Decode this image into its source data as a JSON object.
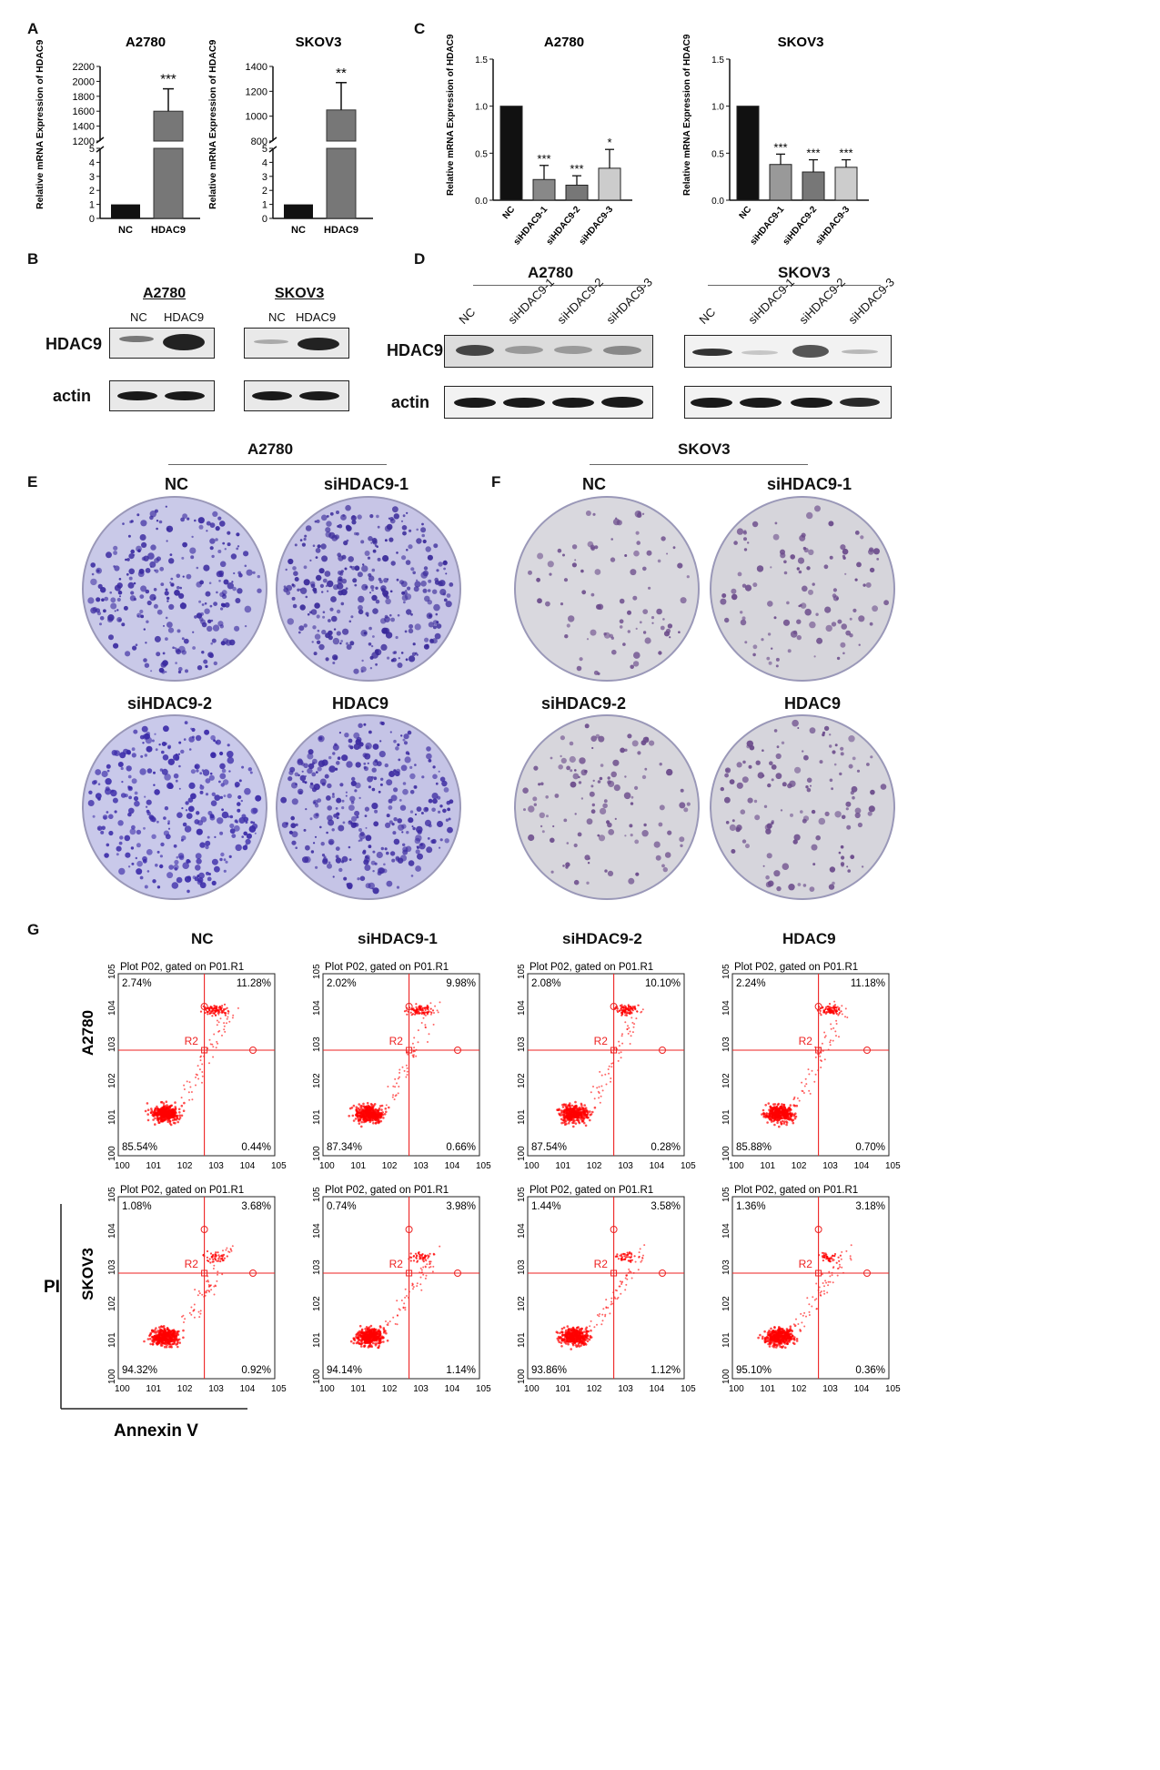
{
  "panels": {
    "A": "A",
    "B": "B",
    "C": "C",
    "D": "D",
    "E": "E",
    "F": "F",
    "G": "G"
  },
  "chartA1": {
    "type": "bar",
    "title": "A2780",
    "ylabel": "Relative mRNA Expression of HDAC9",
    "categories": [
      "NC",
      "HDAC9"
    ],
    "values": [
      1,
      1600
    ],
    "errors": [
      0,
      300
    ],
    "sig": [
      "",
      "***"
    ],
    "upper_ticks": [
      "2200",
      "2000",
      "1800",
      "1600",
      "1400",
      "1200"
    ],
    "lower_ticks": [
      "5",
      "4",
      "3",
      "2",
      "1",
      "0"
    ]
  },
  "chartA2": {
    "type": "bar",
    "title": "SKOV3",
    "ylabel": "Relative mRNA Expression of HDAC9",
    "categories": [
      "NC",
      "HDAC9"
    ],
    "values": [
      1,
      1050
    ],
    "errors": [
      0,
      220
    ],
    "sig": [
      "",
      "**"
    ],
    "upper_ticks": [
      "1400",
      "1200",
      "1000",
      "800"
    ],
    "lower_ticks": [
      "5",
      "4",
      "3",
      "2",
      "1",
      "0"
    ]
  },
  "chartC1": {
    "type": "bar",
    "title": "A2780",
    "ylabel": "Relative mRNA Expression of HDAC9",
    "categories": [
      "NC",
      "siHDAC9-1",
      "siHDAC9-2",
      "siHDAC9-3"
    ],
    "values": [
      1.0,
      0.22,
      0.16,
      0.34
    ],
    "errors": [
      0,
      0.15,
      0.1,
      0.2
    ],
    "sig": [
      "",
      "***",
      "***",
      "*"
    ],
    "ylim": [
      0,
      1.5
    ],
    "ticks": [
      "0.0",
      "0.5",
      "1.0",
      "1.5"
    ],
    "colors": [
      "#111111",
      "#888888",
      "#777777",
      "#cccccc"
    ]
  },
  "chartC2": {
    "type": "bar",
    "title": "SKOV3",
    "ylabel": "Relative mRNA Expression of HDAC9",
    "categories": [
      "NC",
      "siHDAC9-1",
      "siHDAC9-2",
      "siHDAC9-3"
    ],
    "values": [
      1.0,
      0.38,
      0.3,
      0.35
    ],
    "errors": [
      0,
      0.11,
      0.13,
      0.08
    ],
    "sig": [
      "",
      "***",
      "***",
      "***"
    ],
    "ylim": [
      0,
      1.5
    ],
    "ticks": [
      "0.0",
      "0.5",
      "1.0",
      "1.5"
    ],
    "colors": [
      "#111111",
      "#999999",
      "#777777",
      "#cccccc"
    ]
  },
  "blotB": {
    "groups": [
      {
        "name": "A2780",
        "lanes": [
          "NC",
          "HDAC9"
        ]
      },
      {
        "name": "SKOV3",
        "lanes": [
          "NC",
          "HDAC9"
        ]
      }
    ],
    "rows": [
      "HDAC9",
      "actin"
    ]
  },
  "blotD": {
    "groups": [
      {
        "name": "A2780",
        "lanes": [
          "NC",
          "siHDAC9-1",
          "siHDAC9-2",
          "siHDAC9-3"
        ]
      },
      {
        "name": "SKOV3",
        "lanes": [
          "NC",
          "siHDAC9-1",
          "siHDAC9-2",
          "siHDAC9-3"
        ]
      }
    ],
    "rows": [
      "HDAC9",
      "actin"
    ]
  },
  "colonyE": {
    "group": "A2780",
    "titles": [
      "NC",
      "siHDAC9-1",
      "siHDAC9-2",
      "HDAC9"
    ]
  },
  "colonyF": {
    "group": "SKOV3",
    "titles": [
      "NC",
      "siHDAC9-1",
      "siHDAC9-2",
      "HDAC9"
    ]
  },
  "flow": {
    "col_titles": [
      "NC",
      "siHDAC9-1",
      "siHDAC9-2",
      "HDAC9"
    ],
    "row_labels": [
      "A2780",
      "SKOV3"
    ],
    "plot_title": "Plot P02, gated on P01.R1",
    "gate": "R2",
    "xlabel": "Annexin V",
    "ylabel": "PI",
    "axis_ticks": [
      "0",
      "1",
      "2",
      "3",
      "4",
      "5"
    ],
    "quadrants": [
      [
        [
          "2.74%",
          "11.28%",
          "85.54%",
          "0.44%"
        ],
        [
          "2.02%",
          "9.98%",
          "87.34%",
          "0.66%"
        ],
        [
          "2.08%",
          "10.10%",
          "87.54%",
          "0.28%"
        ],
        [
          "2.24%",
          "11.18%",
          "85.88%",
          "0.70%"
        ]
      ],
      [
        [
          "1.08%",
          "3.68%",
          "94.32%",
          "0.92%"
        ],
        [
          "0.74%",
          "3.98%",
          "94.14%",
          "1.14%"
        ],
        [
          "1.44%",
          "3.58%",
          "93.86%",
          "1.12%"
        ],
        [
          "1.36%",
          "3.18%",
          "95.10%",
          "0.36%"
        ]
      ]
    ]
  }
}
